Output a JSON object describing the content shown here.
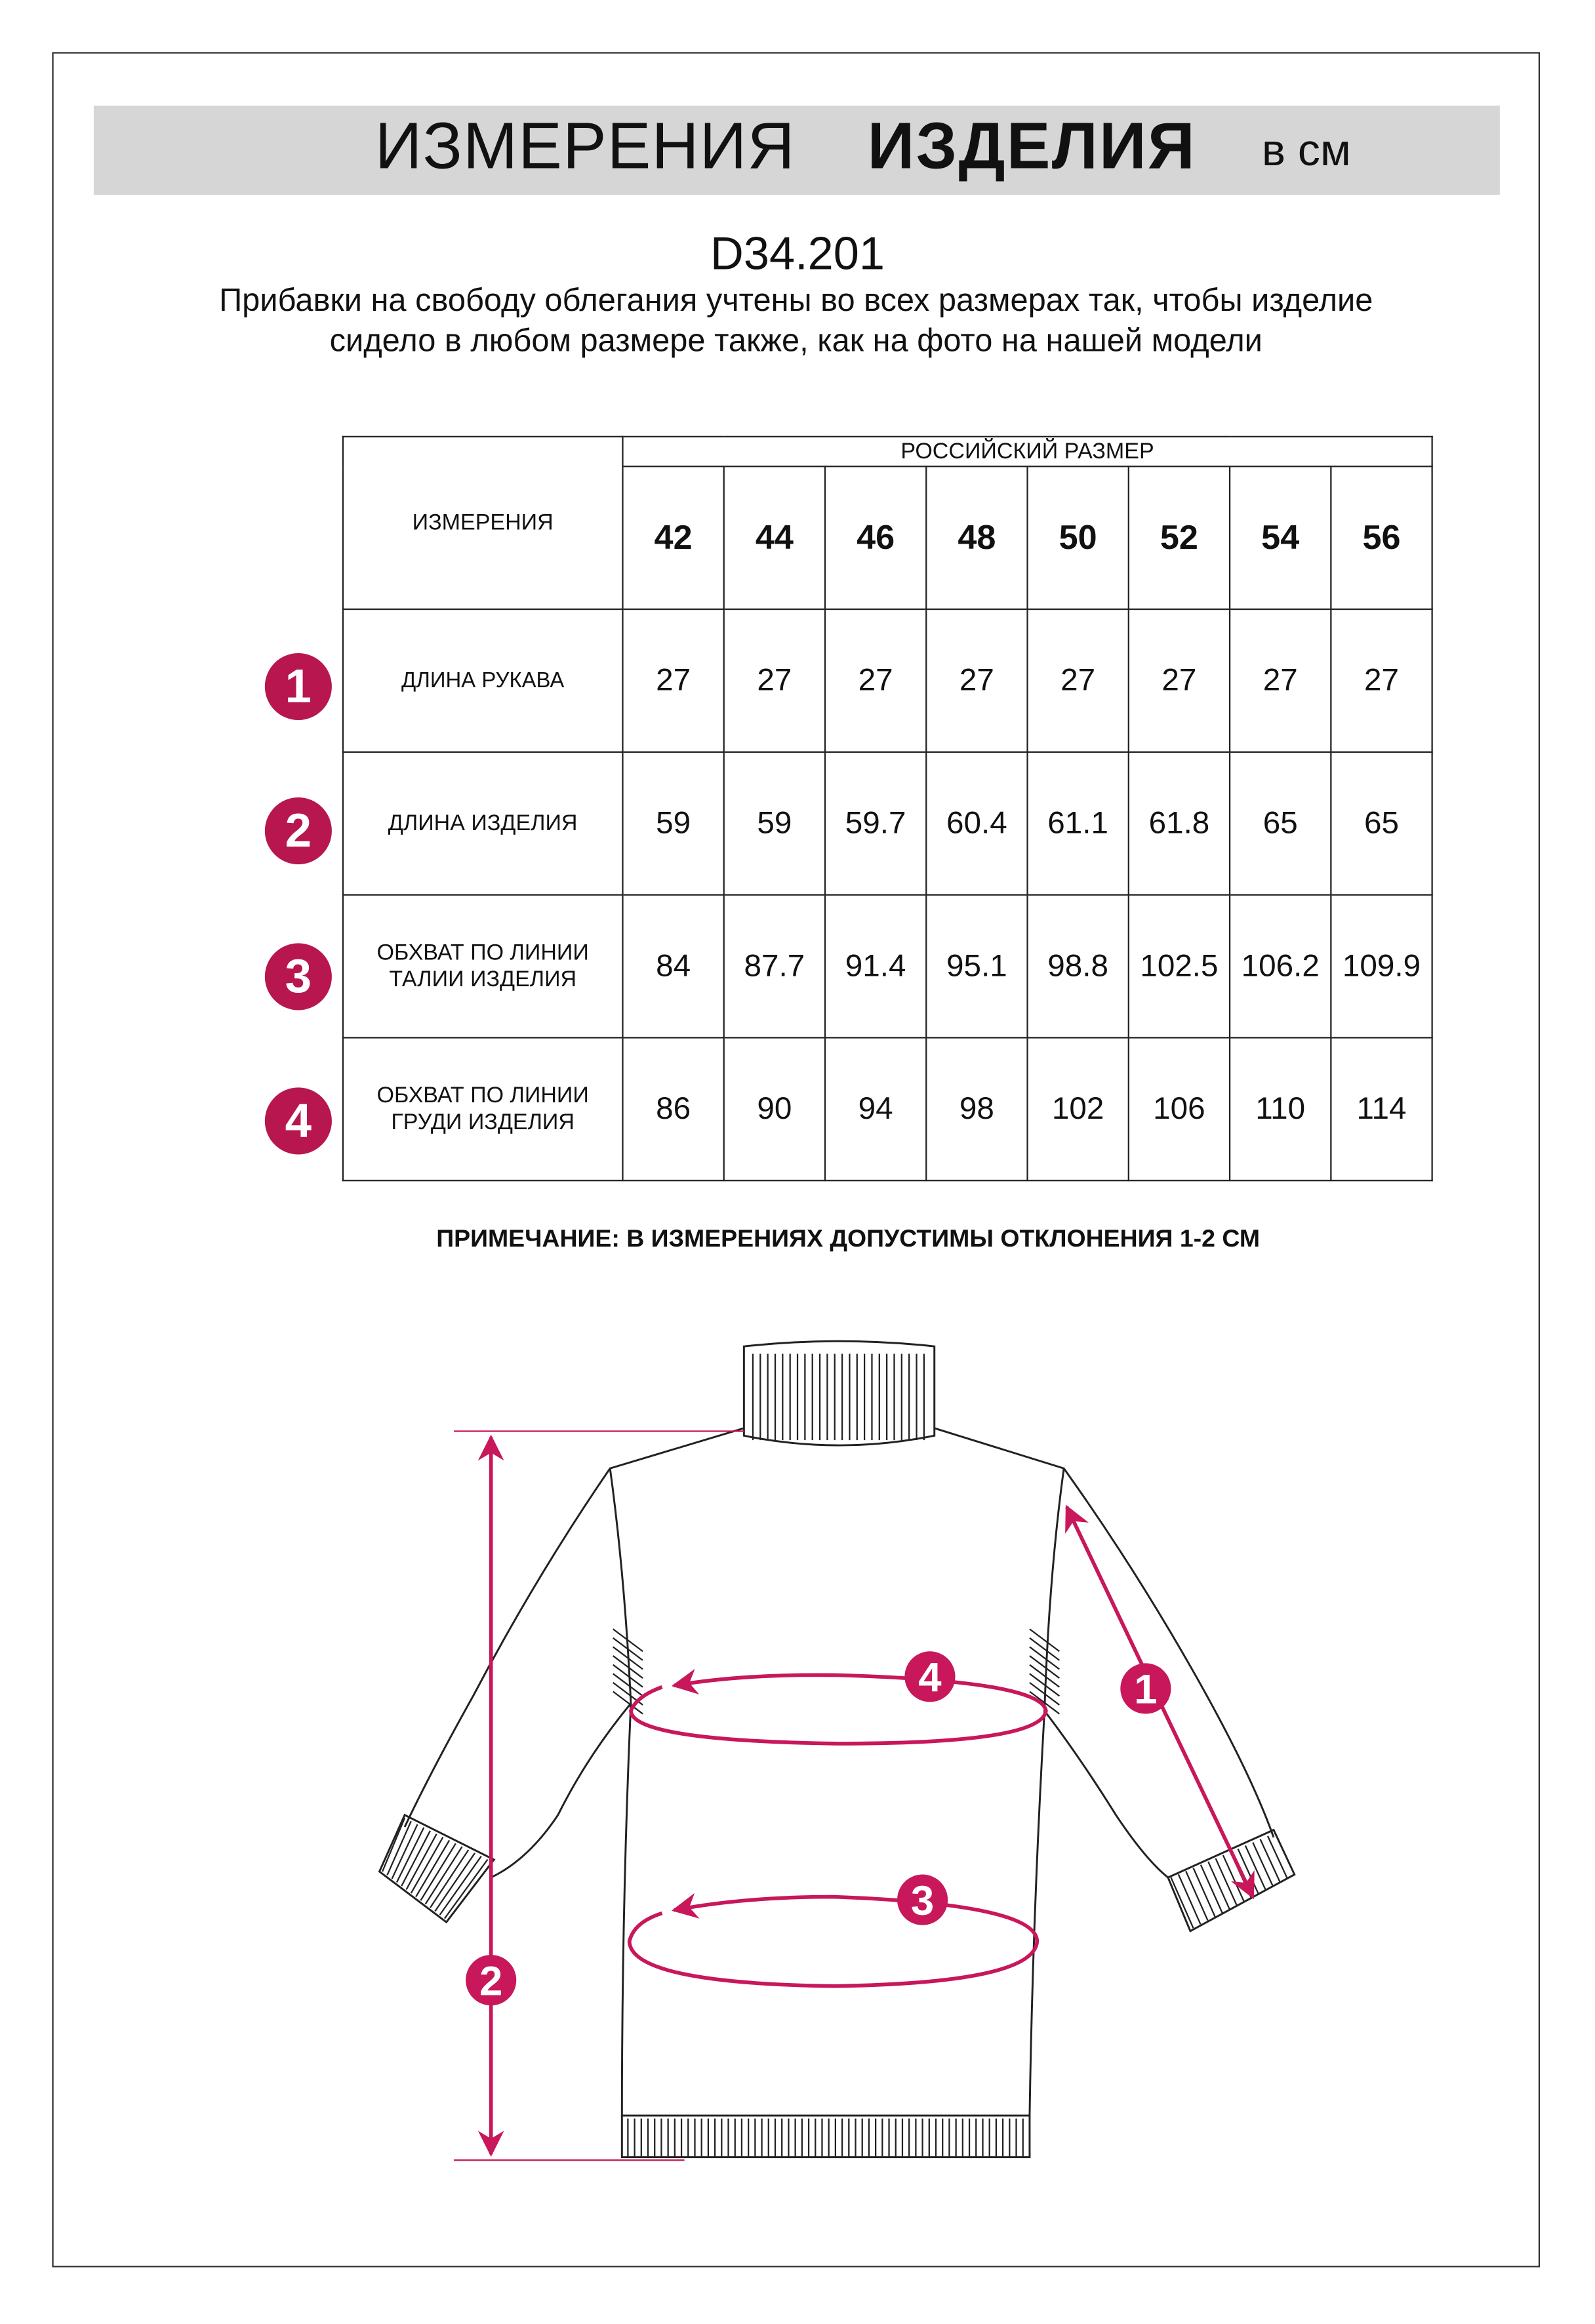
{
  "header": {
    "title_light": "ИЗМЕРЕНИЯ",
    "title_bold": "ИЗДЕЛИЯ",
    "unit": "в см"
  },
  "product_code": "D34.201",
  "description": "Прибавки на свободу облегания учтены во всех размерах так, чтобы изделие сидело в любом размере также, как на фото на нашей модели",
  "table": {
    "corner_label": "ИЗМЕРЕНИЯ",
    "group_label": "РОССИЙСКИЙ РАЗМЕР",
    "sizes": [
      "42",
      "44",
      "46",
      "48",
      "50",
      "52",
      "54",
      "56"
    ],
    "rows": [
      {
        "badge": "1",
        "label": "ДЛИНА РУКАВА",
        "values": [
          "27",
          "27",
          "27",
          "27",
          "27",
          "27",
          "27",
          "27"
        ]
      },
      {
        "badge": "2",
        "label": "ДЛИНА ИЗДЕЛИЯ",
        "values": [
          "59",
          "59",
          "59.7",
          "60.4",
          "61.1",
          "61.8",
          "65",
          "65"
        ]
      },
      {
        "badge": "3",
        "label": "ОБХВАТ ПО ЛИНИИ ТАЛИИ ИЗДЕЛИЯ",
        "values": [
          "84",
          "87.7",
          "91.4",
          "95.1",
          "98.8",
          "102.5",
          "106.2",
          "109.9"
        ]
      },
      {
        "badge": "4",
        "label": "ОБХВАТ ПО ЛИНИИ ГРУДИ ИЗДЕЛИЯ",
        "values": [
          "86",
          "90",
          "94",
          "98",
          "102",
          "106",
          "110",
          "114"
        ]
      }
    ]
  },
  "note": "ПРИМЕЧАНИЕ: В ИЗМЕРЕНИЯХ ДОПУСТИМЫ ОТКЛОНЕНИЯ 1-2 СМ",
  "diagram": {
    "markers": [
      "1",
      "2",
      "3",
      "4"
    ],
    "accent_color": "#c8175a"
  }
}
